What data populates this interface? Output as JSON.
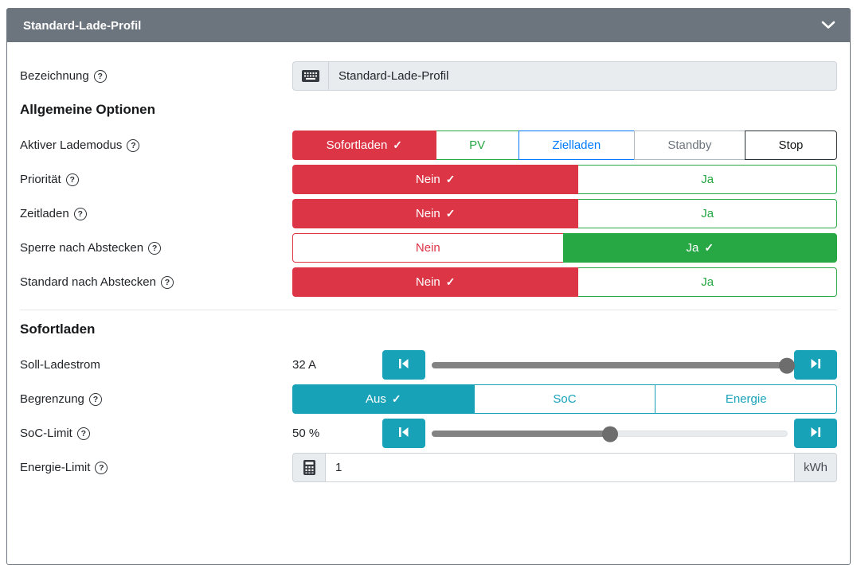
{
  "panel": {
    "title": "Standard-Lade-Profil"
  },
  "glyphs": {
    "check": "✓",
    "help": "?"
  },
  "colors": {
    "header_bg": "#6c757d",
    "red": "#dc3545",
    "green": "#28a745",
    "blue": "#007bff",
    "teal": "#17a2b8",
    "gray": "#6c757d",
    "dark": "#212529"
  },
  "bezeichnung": {
    "label": "Bezeichnung",
    "value": "Standard-Lade-Profil",
    "prefix_icon": "keyboard-icon"
  },
  "sections": {
    "allgemein": "Allgemeine Optionen",
    "sofort": "Sofortladen"
  },
  "lademodus": {
    "label": "Aktiver Lademodus",
    "options": [
      {
        "label": "Sofortladen",
        "selected": true,
        "color": "#dc3545"
      },
      {
        "label": "PV",
        "selected": false,
        "color": "#28a745"
      },
      {
        "label": "Zielladen",
        "selected": false,
        "color": "#007bff"
      },
      {
        "label": "Standby",
        "selected": false,
        "color": "#6c757d"
      },
      {
        "label": "Stop",
        "selected": false,
        "color": "#212529"
      }
    ]
  },
  "prioritaet": {
    "label": "Priorität",
    "nein": "Nein",
    "ja": "Ja",
    "selected": "Nein"
  },
  "zeitladen": {
    "label": "Zeitladen",
    "nein": "Nein",
    "ja": "Ja",
    "selected": "Nein"
  },
  "sperre": {
    "label": "Sperre nach Abstecken",
    "nein": "Nein",
    "ja": "Ja",
    "selected": "Ja"
  },
  "standard_abstecken": {
    "label": "Standard nach Abstecken",
    "nein": "Nein",
    "ja": "Ja",
    "selected": "Nein"
  },
  "soll_ladestrom": {
    "label": "Soll-Ladestrom",
    "value": "32 A",
    "percent": 100
  },
  "begrenzung": {
    "label": "Begrenzung",
    "options": [
      {
        "label": "Aus",
        "selected": true
      },
      {
        "label": "SoC",
        "selected": false
      },
      {
        "label": "Energie",
        "selected": false
      }
    ]
  },
  "soc_limit": {
    "label": "SoC-Limit",
    "value": "50 %",
    "percent": 50
  },
  "energie_limit": {
    "label": "Energie-Limit",
    "value": "1",
    "unit": "kWh",
    "prefix_icon": "calculator-icon"
  }
}
